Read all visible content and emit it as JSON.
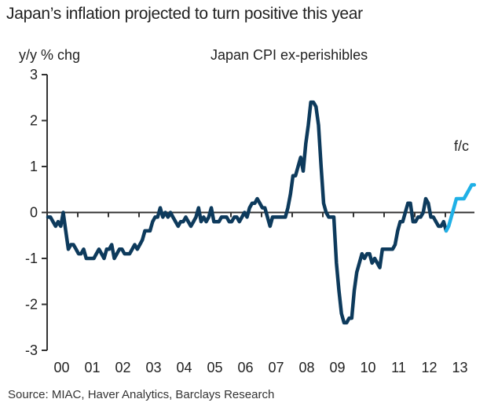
{
  "chart_data": {
    "type": "line",
    "title": "Japan’s inflation projected to turn positive this year",
    "subtitle": "Japan CPI ex-perishibles",
    "ylabel": "y/y % chg",
    "xlabel": "",
    "source": "Source: MIAC, Haver Analytics, Barclays Research",
    "ylim": [
      -3,
      3
    ],
    "yticks": [
      3,
      2,
      1,
      0,
      -1,
      -2,
      -3
    ],
    "xlim": [
      2000,
      2014
    ],
    "xtick_labels": [
      "00",
      "01",
      "02",
      "03",
      "04",
      "05",
      "06",
      "07",
      "08",
      "09",
      "10",
      "11",
      "12",
      "13"
    ],
    "frequency": "monthly",
    "annotation": "f/c",
    "grid": false,
    "colors": {
      "actual": "#0d3a5c",
      "forecast": "#1fb0e6",
      "axis": "#333333"
    },
    "series": [
      {
        "name": "Japan CPI ex-perishibles (actual)",
        "start": "2000-01",
        "values": [
          -0.1,
          -0.1,
          -0.2,
          -0.3,
          -0.2,
          -0.3,
          0.0,
          -0.4,
          -0.8,
          -0.7,
          -0.7,
          -0.8,
          -0.9,
          -0.9,
          -0.8,
          -1.0,
          -1.0,
          -1.0,
          -1.0,
          -0.9,
          -0.8,
          -0.9,
          -1.0,
          -0.8,
          -0.8,
          -0.7,
          -1.0,
          -0.9,
          -0.8,
          -0.8,
          -0.9,
          -0.9,
          -0.9,
          -0.8,
          -0.7,
          -0.8,
          -0.7,
          -0.6,
          -0.4,
          -0.4,
          -0.4,
          -0.2,
          -0.1,
          -0.1,
          0.1,
          -0.1,
          0.0,
          -0.1,
          0.0,
          -0.1,
          -0.2,
          -0.3,
          -0.2,
          -0.2,
          -0.1,
          -0.2,
          -0.3,
          -0.2,
          -0.1,
          0.1,
          -0.2,
          -0.1,
          -0.2,
          -0.1,
          0.1,
          -0.2,
          -0.2,
          -0.2,
          -0.1,
          -0.1,
          -0.1,
          -0.2,
          -0.2,
          -0.1,
          -0.1,
          -0.2,
          -0.1,
          0.0,
          -0.1,
          0.1,
          0.2,
          0.2,
          0.3,
          0.2,
          0.1,
          0.1,
          -0.1,
          -0.3,
          -0.1,
          -0.1,
          -0.1,
          -0.1,
          -0.1,
          -0.1,
          0.1,
          0.4,
          0.8,
          0.8,
          1.0,
          1.2,
          0.9,
          1.5,
          1.9,
          2.4,
          2.4,
          2.3,
          1.9,
          1.0,
          0.2,
          0.0,
          -0.1,
          -0.1,
          -0.1,
          -1.1,
          -1.7,
          -2.2,
          -2.4,
          -2.4,
          -2.3,
          -2.3,
          -1.7,
          -1.3,
          -1.1,
          -0.9,
          -1.0,
          -0.9,
          -0.9,
          -1.1,
          -1.0,
          -1.1,
          -1.2,
          -0.8,
          -0.8,
          -0.8,
          -0.8,
          -0.8,
          -0.7,
          -0.4,
          -0.2,
          -0.2,
          0.0,
          0.2,
          0.2,
          -0.2,
          -0.2,
          -0.1,
          -0.1,
          0.0,
          0.3,
          0.2,
          -0.1,
          -0.1,
          -0.2,
          -0.3,
          -0.3,
          -0.2,
          -0.4
        ]
      },
      {
        "name": "Forecast",
        "start": "2013-01",
        "values": [
          -0.4,
          -0.3,
          -0.1,
          0.1,
          0.3,
          0.3,
          0.3,
          0.3,
          0.4,
          0.5,
          0.6,
          0.6
        ]
      }
    ]
  }
}
